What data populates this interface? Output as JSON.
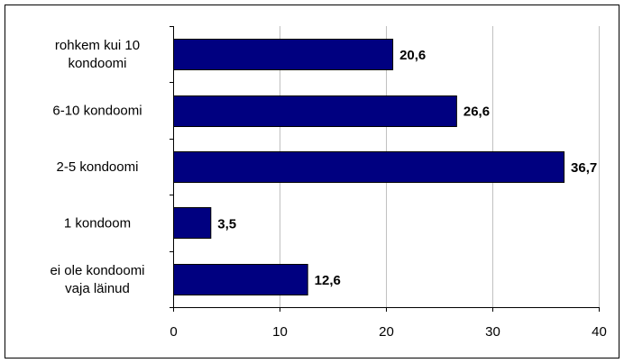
{
  "chart_data": {
    "type": "bar",
    "orientation": "horizontal",
    "categories": [
      [
        "rohkem kui 10",
        "kondoomi"
      ],
      [
        "6-10 kondoomi"
      ],
      [
        "2-5 kondoomi"
      ],
      [
        "1 kondoom"
      ],
      [
        "ei ole kondoomi",
        "vaja läinud"
      ]
    ],
    "values": [
      20.6,
      26.6,
      36.7,
      3.5,
      12.6
    ],
    "value_labels": [
      "20,6",
      "26,6",
      "36,7",
      "3,5",
      "12,6"
    ],
    "xlim": [
      0,
      40
    ],
    "x_ticks": [
      0,
      10,
      20,
      30,
      40
    ],
    "x_tick_labels": [
      "0",
      "10",
      "20",
      "30",
      "40"
    ],
    "grid": "vertical",
    "legend": "none",
    "colors": {
      "bar": "#000080",
      "grid": "#c0c0c0",
      "frame": "#000000"
    }
  }
}
